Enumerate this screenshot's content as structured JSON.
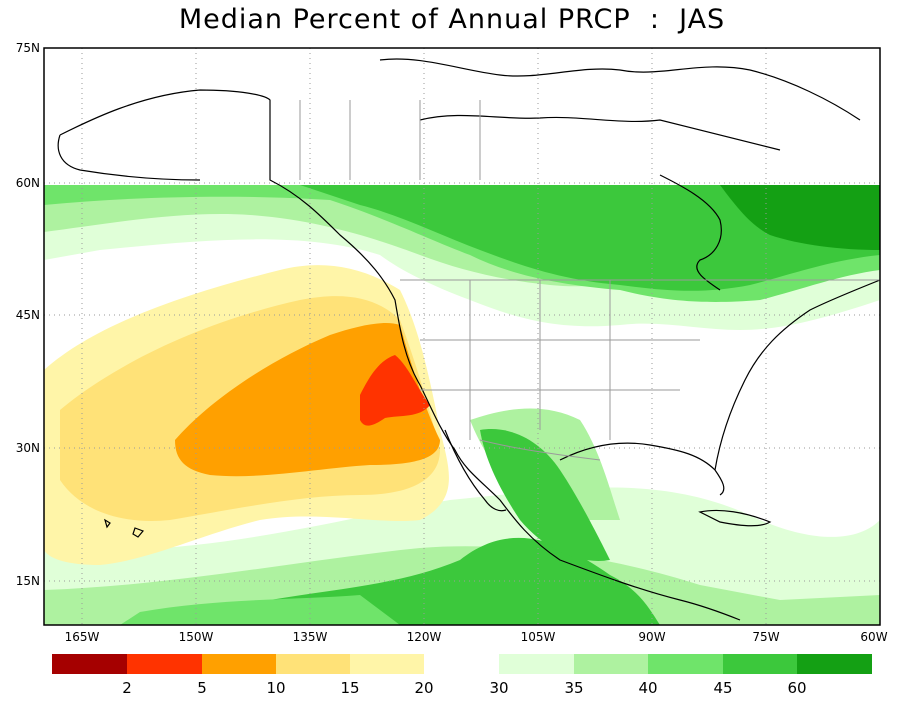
{
  "title": "Median Percent of Annual PRCP  :  JAS",
  "axes": {
    "lat_labels": [
      "75N",
      "60N",
      "45N",
      "30N",
      "15N"
    ],
    "lon_labels": [
      "165W",
      "150W",
      "135W",
      "120W",
      "105W",
      "90W",
      "75W",
      "60W"
    ]
  },
  "legend": {
    "low_bins": [
      {
        "color": "#a50000",
        "label": "2"
      },
      {
        "color": "#ff3300",
        "label": "5"
      },
      {
        "color": "#ffa000",
        "label": "10"
      },
      {
        "color": "#ffe278",
        "label": "15"
      },
      {
        "color": "#fff5a8",
        "label": "20"
      }
    ],
    "high_bins": [
      {
        "color": "#e0ffd8",
        "label": "30"
      },
      {
        "color": "#aef2a0",
        "label": "35"
      },
      {
        "color": "#6fe46a",
        "label": "40"
      },
      {
        "color": "#3cc83c",
        "label": "45"
      },
      {
        "color": "#14a014",
        "label": "60"
      }
    ]
  },
  "colors": {
    "band_2_5": "#ff3300",
    "band_5_10": "#ffa000",
    "band_10_15": "#ffe278",
    "band_15_20": "#fff5a8",
    "band_30_35": "#e0ffd8",
    "band_35_40": "#aef2a0",
    "band_40_45": "#6fe46a",
    "band_45_60": "#3cc83c",
    "band_60_plus": "#14a014",
    "land_outline": "#000000",
    "boundary": "#9a9a9a"
  }
}
